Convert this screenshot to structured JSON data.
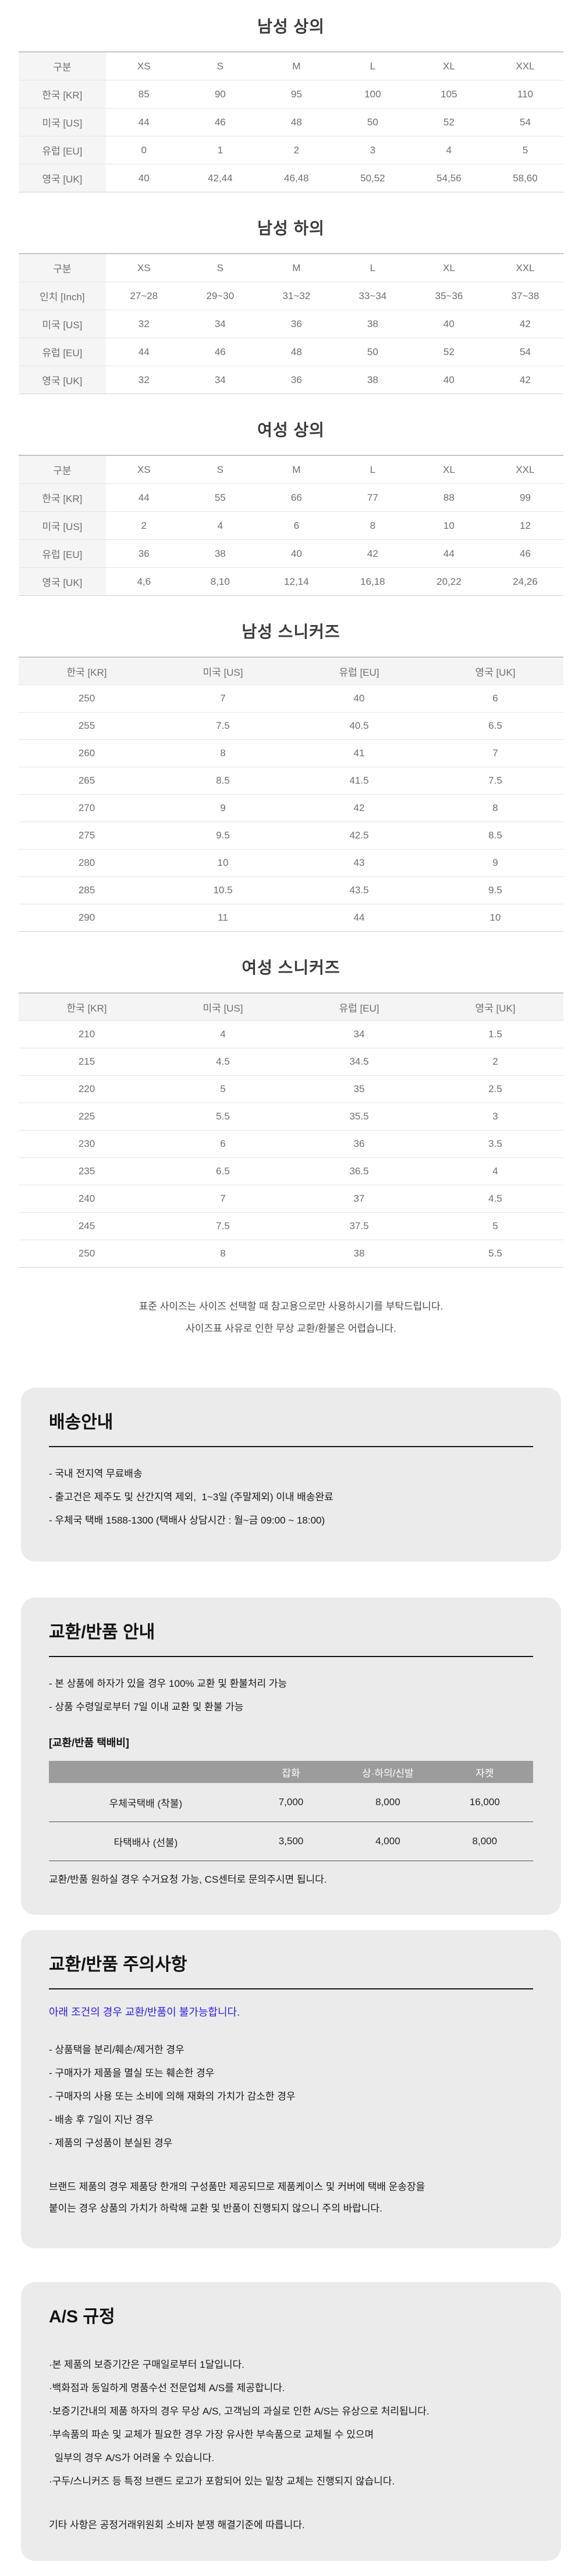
{
  "colors": {
    "box_background": "#ebebeb",
    "label_column_background": "#f5f5f5",
    "fee_header_background": "#9c9c9c",
    "notice_blue": "#2b1ee6"
  },
  "size_tables": [
    {
      "title": "남성 상의",
      "col_headers": [
        "구분",
        "XS",
        "S",
        "M",
        "L",
        "XL",
        "XXL"
      ],
      "rows": [
        {
          "label": "한국 [KR]",
          "values": [
            "85",
            "90",
            "95",
            "100",
            "105",
            "110"
          ]
        },
        {
          "label": "미국 [US]",
          "values": [
            "44",
            "46",
            "48",
            "50",
            "52",
            "54"
          ]
        },
        {
          "label": "유럽 [EU]",
          "values": [
            "0",
            "1",
            "2",
            "3",
            "4",
            "5"
          ]
        },
        {
          "label": "영국 [UK]",
          "values": [
            "40",
            "42,44",
            "46,48",
            "50,52",
            "54,56",
            "58,60"
          ]
        }
      ]
    },
    {
      "title": "남성 하의",
      "col_headers": [
        "구분",
        "XS",
        "S",
        "M",
        "L",
        "XL",
        "XXL"
      ],
      "rows": [
        {
          "label": "인치 [Inch]",
          "values": [
            "27~28",
            "29~30",
            "31~32",
            "33~34",
            "35~36",
            "37~38"
          ]
        },
        {
          "label": "미국 [US]",
          "values": [
            "32",
            "34",
            "36",
            "38",
            "40",
            "42"
          ]
        },
        {
          "label": "유럽 [EU]",
          "values": [
            "44",
            "46",
            "48",
            "50",
            "52",
            "54"
          ]
        },
        {
          "label": "영국 [UK]",
          "values": [
            "32",
            "34",
            "36",
            "38",
            "40",
            "42"
          ]
        }
      ]
    },
    {
      "title": "여성 상의",
      "col_headers": [
        "구분",
        "XS",
        "S",
        "M",
        "L",
        "XL",
        "XXL"
      ],
      "rows": [
        {
          "label": "한국 [KR]",
          "values": [
            "44",
            "55",
            "66",
            "77",
            "88",
            "99"
          ]
        },
        {
          "label": "미국 [US]",
          "values": [
            "2",
            "4",
            "6",
            "8",
            "10",
            "12"
          ]
        },
        {
          "label": "유럽 [EU]",
          "values": [
            "36",
            "38",
            "40",
            "42",
            "44",
            "46"
          ]
        },
        {
          "label": "영국 [UK]",
          "values": [
            "4,6",
            "8,10",
            "12,14",
            "16,18",
            "20,22",
            "24,26"
          ]
        }
      ]
    }
  ],
  "sneaker_tables": [
    {
      "title": "남성 스니커즈",
      "col_headers": [
        "한국 [KR]",
        "미국 [US]",
        "유럽 [EU]",
        "영국 [UK]"
      ],
      "rows": [
        [
          "250",
          "7",
          "40",
          "6"
        ],
        [
          "255",
          "7.5",
          "40.5",
          "6.5"
        ],
        [
          "260",
          "8",
          "41",
          "7"
        ],
        [
          "265",
          "8.5",
          "41.5",
          "7.5"
        ],
        [
          "270",
          "9",
          "42",
          "8"
        ],
        [
          "275",
          "9.5",
          "42.5",
          "8.5"
        ],
        [
          "280",
          "10",
          "43",
          "9"
        ],
        [
          "285",
          "10.5",
          "43.5",
          "9.5"
        ],
        [
          "290",
          "11",
          "44",
          "10"
        ]
      ]
    },
    {
      "title": "여성 스니커즈",
      "col_headers": [
        "한국 [KR]",
        "미국 [US]",
        "유럽 [EU]",
        "영국 [UK]"
      ],
      "rows": [
        [
          "210",
          "4",
          "34",
          "1.5"
        ],
        [
          "215",
          "4.5",
          "34.5",
          "2"
        ],
        [
          "220",
          "5",
          "35",
          "2.5"
        ],
        [
          "225",
          "5.5",
          "35.5",
          "3"
        ],
        [
          "230",
          "6",
          "36",
          "3.5"
        ],
        [
          "235",
          "6.5",
          "36.5",
          "4"
        ],
        [
          "240",
          "7",
          "37",
          "4.5"
        ],
        [
          "245",
          "7.5",
          "37.5",
          "5"
        ],
        [
          "250",
          "8",
          "38",
          "5.5"
        ]
      ]
    }
  ],
  "notes": [
    "표준 사이즈는 사이즈 선택할 때 참고용으로만 사용하시기를 부탁드립니다.",
    "사이즈표 사유로 인한 무상 교환/환불은 어렵습니다."
  ],
  "boxes": {
    "shipping": {
      "title": "배송안내",
      "bullets": [
        "- 국내 전지역 무료배송",
        "- 출고건은 제주도 및 산간지역 제외,  1~3일 (주말제외) 이내 배송완료",
        "- 우체국 택배 1588-1300 (택배사 상담시간 : 월~금 09:00 ~ 18:00)"
      ]
    },
    "exchange": {
      "title": "교환/반품 안내",
      "bullets": [
        "- 본 상품에 하자가 있을 경우 100% 교환 및 환불처리 가능",
        "- 상품 수령일로부터 7일 이내 교환 및 환불 가능"
      ],
      "fee_table_label": "[교환/반품 택배비]",
      "fee_table": {
        "col_headers": [
          "",
          "잡화",
          "상·하의/신발",
          "자켓"
        ],
        "rows": [
          [
            "우체국택배 (착불)",
            "7,000",
            "8,000",
            "16,000"
          ],
          [
            "타택배사 (선불)",
            "3,500",
            "4,000",
            "8,000"
          ]
        ]
      },
      "footnote": "교환/반품 원하실 경우 수거요청 가능, CS센터로 문의주시면 됩니다."
    },
    "caution": {
      "title": "교환/반품 주의사항",
      "notice": "아래 조건의 경우 교환/반품이 불가능합니다.",
      "bullets": [
        "- 상품택을 분리/훼손/제거한 경우",
        "- 구매자가 제품을 멸실 또는 훼손한 경우",
        "- 구매자의 사용 또는 소비에 의해 재화의 가치가 감소한 경우",
        "- 배송 후 7일이 지난 경우",
        "- 제품의 구성품이 분실된 경우"
      ],
      "paragraph_lines": [
        "브랜드 제품의 경우 제품당 한개의 구성품만 제공되므로 제품케이스 및 커버에 택배 운송장을",
        "붙이는 경우 상품의 가치가 하락해 교환 및 반품이 진행되지 않으니 주의 바랍니다."
      ]
    },
    "as_policy": {
      "title": "A/S 규정",
      "bullets": [
        "·본 제품의 보증기간은 구매일로부터 1달입니다.",
        "·백화점과 동일하게 명품수선 전문업체 A/S를 제공합니다.",
        "·보증기간내의 제품 하자의 경우 무상 A/S, 고객님의 과실로 인한 A/S는 유상으로 처리됩니다.",
        "·부속품의 파손 및 교체가 필요한 경우 가장 유사한 부속품으로 교체될 수 있으며",
        "  일부의 경우 A/S가 어려울 수 있습니다.",
        "·구두/스니커즈 등 특정 브랜드 로고가 포함되어 있는 밑창 교체는 진행되지 않습니다."
      ],
      "footer": "기타 사항은 공정거래위원회 소비자 분쟁 해결기준에 따릅니다."
    }
  }
}
